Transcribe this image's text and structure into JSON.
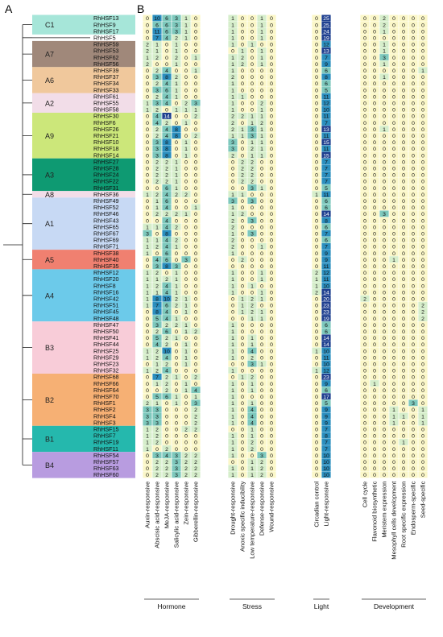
{
  "panels": {
    "a": "A",
    "b": "B"
  },
  "genes": [
    "RhHSF13",
    "RhHSF9",
    "RhHSF17",
    "RhHSF5",
    "RhHSF59",
    "RhHSF53",
    "RhHSF62",
    "RhHSF56",
    "RhHSF39",
    "RhHSF37",
    "RhHSF34",
    "RhHSF33",
    "RhHSF61",
    "RhHSF55",
    "RhHSF58",
    "RhHSF30",
    "RhHSF6",
    "RhHSF26",
    "RhHSF21",
    "RhHSF10",
    "RhHSF18",
    "RhHSF14",
    "RhHSF27",
    "RhHSF28",
    "RhHSF24",
    "RhHSF22",
    "RhHSF31",
    "RhHSF36",
    "RhHSF49",
    "RhHSF52",
    "RhHSF46",
    "RhHSF43",
    "RhHSF65",
    "RhHSF67",
    "RhHSF69",
    "RhHSF71",
    "RhHSF38",
    "RhHSF40",
    "RhHSF35",
    "RhHSF12",
    "RhHSF20",
    "RhHSF8",
    "RhHSF16",
    "RhHSF42",
    "RhHSF51",
    "RhHSF45",
    "RhHSF48",
    "RhHSF47",
    "RhHSF50",
    "RhHSF41",
    "RhHSF44",
    "RhHSF25",
    "RhHSF29",
    "RhHSF23",
    "RhHSF32",
    "RhHSF68",
    "RhHSF66",
    "RhHSF64",
    "RhHSF70",
    "RhHSF1",
    "RhHSF2",
    "RhHSF4",
    "RhHSF3",
    "RhHSF15",
    "RhHSF7",
    "RhHSF19",
    "RhHSF11",
    "RhHSF54",
    "RhHSF57",
    "RhHSF63",
    "RhHSF60"
  ],
  "clades": [
    {
      "name": "C1",
      "start": 0,
      "end": 2,
      "color": "#a6e6d9"
    },
    {
      "name": "A7",
      "start": 4,
      "end": 7,
      "color": "#a0887a"
    },
    {
      "name": "A6",
      "start": 8,
      "end": 11,
      "color": "#f0c89c"
    },
    {
      "name": "A2",
      "start": 12,
      "end": 14,
      "color": "#f2dde8"
    },
    {
      "name": "A9",
      "start": 15,
      "end": 21,
      "color": "#cce77a"
    },
    {
      "name": "A3",
      "start": 22,
      "end": 26,
      "color": "#0e9a72"
    },
    {
      "name": "A8",
      "start": 27,
      "end": 27,
      "color": "#f2dde8"
    },
    {
      "name": "A1",
      "start": 28,
      "end": 35,
      "color": "#c7d9f4"
    },
    {
      "name": "A5",
      "start": 36,
      "end": 38,
      "color": "#f08070"
    },
    {
      "name": "A4",
      "start": 39,
      "end": 46,
      "color": "#6ccaea"
    },
    {
      "name": "B3",
      "start": 47,
      "end": 54,
      "color": "#f8ccd8"
    },
    {
      "name": "B2",
      "start": 55,
      "end": 62,
      "color": "#f6b074"
    },
    {
      "name": "B1",
      "start": 63,
      "end": 66,
      "color": "#25b8ad"
    },
    {
      "name": "B4",
      "start": 67,
      "end": 70,
      "color": "#b89ce0"
    }
  ],
  "columns": [
    "Auxin-responsive",
    "Abscisic acid-responsive",
    "MeJA-responsive",
    "Salicylic acid-responsive",
    "Zein-responsive",
    "Gibberellin-responsive",
    "Drought-responsive",
    "Anoxic specific inducibility",
    "Low temperature-responsive",
    "Defense-responsive",
    "Wound-responsive",
    "Circadian control",
    "Light-responsive",
    "Cell cycle",
    "Flavonoid biosynthetic",
    "Meristem expression",
    "Mesophyll cells development",
    "Root specific expression",
    "Endosperm-specific",
    "Seed-specific"
  ],
  "groups": [
    {
      "name": "Hormone",
      "cols": [
        0,
        5
      ]
    },
    {
      "name": "Stress",
      "cols": [
        6,
        10
      ]
    },
    {
      "name": "Light",
      "cols": [
        11,
        12
      ]
    },
    {
      "name": "Development",
      "cols": [
        13,
        19
      ]
    }
  ],
  "colors": {
    "zero": "#fbf7c8",
    "low": "#d6eecb",
    "mid": "#7ec9bd",
    "high": "#2b8fbf",
    "max": "#1e3f8f"
  },
  "matrix": [
    [
      0,
      10,
      6,
      3,
      1,
      0,
      1,
      0,
      0,
      1,
      0,
      0,
      25,
      0,
      0,
      2,
      0,
      0,
      0,
      0
    ],
    [
      0,
      6,
      6,
      3,
      1,
      0,
      1,
      0,
      0,
      1,
      0,
      0,
      25,
      0,
      0,
      2,
      0,
      0,
      0,
      0
    ],
    [
      0,
      11,
      6,
      3,
      1,
      0,
      1,
      0,
      0,
      1,
      0,
      0,
      24,
      0,
      0,
      1,
      0,
      0,
      0,
      0
    ],
    [
      0,
      7,
      4,
      2,
      1,
      0,
      1,
      0,
      0,
      1,
      0,
      0,
      19,
      0,
      0,
      0,
      0,
      0,
      0,
      0
    ],
    [
      2,
      1,
      0,
      1,
      0,
      0,
      1,
      0,
      1,
      0,
      0,
      0,
      12,
      0,
      0,
      1,
      0,
      0,
      0,
      0
    ],
    [
      2,
      1,
      0,
      1,
      0,
      0,
      0,
      1,
      0,
      1,
      0,
      0,
      13,
      0,
      0,
      1,
      0,
      0,
      0,
      0
    ],
    [
      1,
      2,
      0,
      2,
      0,
      1,
      1,
      2,
      0,
      1,
      0,
      0,
      7,
      0,
      0,
      3,
      0,
      0,
      0,
      0
    ],
    [
      2,
      0,
      0,
      1,
      0,
      0,
      1,
      2,
      0,
      1,
      0,
      0,
      9,
      0,
      0,
      1,
      0,
      0,
      0,
      0
    ],
    [
      0,
      2,
      4,
      0,
      0,
      1,
      1,
      0,
      0,
      0,
      0,
      0,
      6,
      0,
      0,
      0,
      0,
      0,
      0,
      1
    ],
    [
      0,
      3,
      8,
      2,
      0,
      0,
      2,
      0,
      0,
      0,
      0,
      0,
      8,
      0,
      0,
      1,
      0,
      0,
      0,
      0
    ],
    [
      0,
      2,
      4,
      1,
      0,
      0,
      1,
      0,
      0,
      0,
      0,
      0,
      6,
      0,
      0,
      0,
      0,
      0,
      0,
      0
    ],
    [
      0,
      3,
      6,
      1,
      0,
      0,
      1,
      0,
      0,
      0,
      0,
      0,
      5,
      0,
      0,
      0,
      0,
      0,
      0,
      0
    ],
    [
      0,
      2,
      4,
      1,
      0,
      0,
      1,
      1,
      0,
      0,
      0,
      0,
      11,
      0,
      0,
      0,
      0,
      0,
      0,
      0
    ],
    [
      1,
      3,
      4,
      0,
      2,
      3,
      1,
      0,
      0,
      2,
      0,
      0,
      12,
      0,
      0,
      0,
      0,
      0,
      0,
      0
    ],
    [
      1,
      2,
      0,
      1,
      1,
      1,
      1,
      0,
      0,
      1,
      0,
      0,
      10,
      0,
      0,
      0,
      0,
      0,
      0,
      0
    ],
    [
      0,
      4,
      14,
      0,
      0,
      2,
      2,
      2,
      1,
      1,
      0,
      0,
      11,
      0,
      0,
      0,
      0,
      0,
      0,
      0
    ],
    [
      0,
      4,
      2,
      0,
      1,
      0,
      2,
      0,
      1,
      2,
      0,
      0,
      7,
      0,
      0,
      0,
      0,
      0,
      0,
      0
    ],
    [
      0,
      2,
      4,
      8,
      0,
      0,
      2,
      1,
      3,
      1,
      0,
      0,
      13,
      0,
      0,
      1,
      0,
      0,
      0,
      0
    ],
    [
      0,
      2,
      4,
      8,
      0,
      2,
      1,
      1,
      3,
      1,
      0,
      0,
      11,
      0,
      0,
      0,
      0,
      0,
      0,
      0
    ],
    [
      0,
      3,
      8,
      0,
      1,
      0,
      3,
      0,
      1,
      1,
      0,
      0,
      15,
      0,
      0,
      0,
      0,
      0,
      0,
      0
    ],
    [
      0,
      3,
      8,
      0,
      1,
      0,
      3,
      0,
      2,
      1,
      0,
      0,
      11,
      0,
      0,
      0,
      0,
      0,
      0,
      0
    ],
    [
      0,
      3,
      8,
      0,
      1,
      0,
      2,
      0,
      1,
      1,
      0,
      0,
      15,
      0,
      0,
      0,
      0,
      0,
      0,
      0
    ],
    [
      0,
      2,
      2,
      1,
      0,
      0,
      0,
      2,
      2,
      0,
      0,
      0,
      7,
      0,
      0,
      0,
      0,
      0,
      0,
      0
    ],
    [
      0,
      2,
      2,
      1,
      0,
      0,
      0,
      2,
      2,
      0,
      0,
      0,
      7,
      0,
      0,
      0,
      0,
      0,
      0,
      0
    ],
    [
      0,
      2,
      2,
      1,
      0,
      0,
      0,
      2,
      2,
      0,
      0,
      0,
      7,
      0,
      0,
      0,
      0,
      0,
      0,
      0
    ],
    [
      0,
      2,
      2,
      1,
      0,
      0,
      0,
      2,
      2,
      0,
      0,
      0,
      7,
      0,
      0,
      0,
      0,
      0,
      0,
      0
    ],
    [
      0,
      0,
      6,
      1,
      0,
      0,
      0,
      0,
      3,
      1,
      0,
      0,
      5,
      0,
      0,
      0,
      0,
      0,
      0,
      0
    ],
    [
      1,
      2,
      4,
      2,
      2,
      0,
      1,
      1,
      0,
      0,
      0,
      1,
      11,
      0,
      0,
      0,
      0,
      0,
      0,
      0
    ],
    [
      0,
      1,
      6,
      0,
      0,
      0,
      3,
      0,
      3,
      0,
      0,
      0,
      6,
      0,
      0,
      0,
      0,
      0,
      0,
      0
    ],
    [
      0,
      1,
      4,
      0,
      0,
      1,
      1,
      0,
      0,
      0,
      0,
      0,
      6,
      0,
      0,
      0,
      0,
      0,
      0,
      0
    ],
    [
      0,
      2,
      2,
      2,
      1,
      0,
      1,
      2,
      0,
      0,
      0,
      0,
      14,
      0,
      0,
      3,
      0,
      0,
      0,
      0
    ],
    [
      0,
      0,
      4,
      0,
      0,
      0,
      2,
      0,
      3,
      0,
      0,
      0,
      8,
      0,
      0,
      0,
      0,
      0,
      0,
      0
    ],
    [
      1,
      1,
      4,
      2,
      0,
      0,
      2,
      0,
      0,
      0,
      0,
      0,
      6,
      0,
      0,
      0,
      0,
      0,
      0,
      0
    ],
    [
      3,
      0,
      8,
      0,
      0,
      0,
      1,
      0,
      3,
      0,
      0,
      0,
      7,
      0,
      0,
      0,
      0,
      0,
      0,
      0
    ],
    [
      1,
      1,
      4,
      2,
      0,
      0,
      2,
      0,
      0,
      0,
      0,
      0,
      6,
      0,
      0,
      0,
      0,
      0,
      0,
      0
    ],
    [
      1,
      2,
      4,
      1,
      0,
      0,
      2,
      0,
      0,
      1,
      0,
      0,
      7,
      0,
      0,
      0,
      0,
      0,
      0,
      0
    ],
    [
      1,
      0,
      6,
      0,
      0,
      0,
      1,
      0,
      0,
      0,
      0,
      0,
      9,
      0,
      0,
      0,
      0,
      0,
      0,
      0
    ],
    [
      0,
      4,
      6,
      0,
      3,
      0,
      0,
      2,
      0,
      0,
      0,
      0,
      9,
      0,
      0,
      0,
      1,
      0,
      0,
      0
    ],
    [
      0,
      3,
      8,
      3,
      0,
      0,
      0,
      0,
      0,
      0,
      0,
      0,
      11,
      0,
      0,
      0,
      0,
      0,
      0,
      0
    ],
    [
      1,
      2,
      0,
      1,
      0,
      0,
      1,
      0,
      0,
      1,
      0,
      2,
      12,
      0,
      0,
      0,
      0,
      0,
      0,
      0
    ],
    [
      1,
      1,
      2,
      1,
      0,
      0,
      1,
      0,
      0,
      1,
      0,
      1,
      11,
      0,
      0,
      0,
      0,
      0,
      0,
      0
    ],
    [
      1,
      2,
      4,
      1,
      0,
      0,
      1,
      0,
      1,
      0,
      0,
      1,
      10,
      0,
      0,
      0,
      0,
      0,
      0,
      0
    ],
    [
      1,
      1,
      4,
      1,
      0,
      0,
      1,
      0,
      0,
      1,
      0,
      2,
      14,
      0,
      0,
      0,
      0,
      0,
      0,
      0
    ],
    [
      1,
      8,
      10,
      2,
      1,
      0,
      0,
      1,
      2,
      1,
      0,
      0,
      20,
      2,
      0,
      0,
      0,
      0,
      0,
      0
    ],
    [
      1,
      7,
      6,
      2,
      1,
      0,
      0,
      1,
      2,
      0,
      0,
      0,
      23,
      0,
      0,
      0,
      0,
      0,
      0,
      2
    ],
    [
      0,
      8,
      4,
      0,
      1,
      0,
      0,
      1,
      2,
      1,
      0,
      0,
      23,
      0,
      0,
      0,
      0,
      0,
      0,
      2
    ],
    [
      0,
      5,
      4,
      1,
      0,
      0,
      0,
      0,
      1,
      1,
      0,
      0,
      19,
      0,
      0,
      0,
      0,
      0,
      0,
      2
    ],
    [
      0,
      3,
      2,
      2,
      1,
      0,
      1,
      0,
      0,
      0,
      0,
      0,
      6,
      0,
      0,
      0,
      0,
      0,
      0,
      0
    ],
    [
      0,
      2,
      6,
      0,
      1,
      2,
      1,
      0,
      0,
      0,
      0,
      0,
      6,
      0,
      0,
      0,
      0,
      0,
      0,
      0
    ],
    [
      0,
      5,
      2,
      1,
      0,
      0,
      1,
      0,
      1,
      0,
      0,
      0,
      14,
      0,
      0,
      0,
      0,
      0,
      0,
      0
    ],
    [
      0,
      4,
      2,
      0,
      1,
      0,
      1,
      0,
      1,
      0,
      0,
      0,
      14,
      0,
      0,
      0,
      0,
      0,
      0,
      0
    ],
    [
      1,
      2,
      10,
      0,
      1,
      0,
      1,
      0,
      4,
      0,
      0,
      1,
      10,
      0,
      0,
      0,
      0,
      0,
      0,
      0
    ],
    [
      1,
      2,
      4,
      0,
      1,
      0,
      1,
      0,
      2,
      0,
      0,
      0,
      11,
      0,
      0,
      0,
      0,
      0,
      0,
      0
    ],
    [
      0,
      1,
      2,
      0,
      1,
      0,
      0,
      0,
      3,
      1,
      0,
      0,
      10,
      0,
      0,
      0,
      0,
      0,
      0,
      0
    ],
    [
      1,
      2,
      4,
      0,
      0,
      0,
      1,
      0,
      0,
      0,
      0,
      1,
      12,
      0,
      0,
      0,
      0,
      0,
      0,
      0
    ],
    [
      0,
      7,
      2,
      1,
      0,
      2,
      0,
      1,
      2,
      0,
      0,
      0,
      23,
      0,
      0,
      0,
      0,
      0,
      0,
      0
    ],
    [
      0,
      1,
      2,
      0,
      1,
      0,
      1,
      0,
      1,
      0,
      0,
      0,
      9,
      0,
      1,
      0,
      0,
      0,
      0,
      0
    ],
    [
      0,
      0,
      2,
      0,
      1,
      4,
      1,
      0,
      1,
      0,
      0,
      0,
      6,
      0,
      0,
      0,
      0,
      0,
      0,
      0
    ],
    [
      0,
      5,
      6,
      1,
      0,
      1,
      1,
      0,
      0,
      0,
      0,
      0,
      17,
      0,
      0,
      0,
      0,
      0,
      0,
      0
    ],
    [
      2,
      1,
      0,
      1,
      0,
      3,
      1,
      0,
      1,
      0,
      0,
      0,
      5,
      0,
      0,
      0,
      0,
      0,
      3,
      0
    ],
    [
      3,
      3,
      0,
      0,
      0,
      2,
      1,
      0,
      4,
      0,
      0,
      0,
      9,
      0,
      0,
      0,
      1,
      0,
      0,
      1
    ],
    [
      3,
      3,
      0,
      0,
      0,
      2,
      1,
      0,
      4,
      0,
      0,
      0,
      9,
      0,
      0,
      0,
      1,
      1,
      0,
      1
    ],
    [
      3,
      3,
      0,
      0,
      0,
      2,
      1,
      0,
      4,
      0,
      0,
      0,
      9,
      0,
      0,
      0,
      1,
      0,
      0,
      1
    ],
    [
      1,
      2,
      0,
      0,
      2,
      2,
      0,
      0,
      1,
      0,
      0,
      0,
      7,
      0,
      0,
      0,
      0,
      0,
      0,
      0
    ],
    [
      1,
      2,
      0,
      0,
      0,
      0,
      1,
      0,
      1,
      0,
      0,
      0,
      8,
      0,
      0,
      0,
      0,
      0,
      0,
      0
    ],
    [
      1,
      2,
      0,
      0,
      0,
      0,
      1,
      0,
      2,
      0,
      0,
      0,
      7,
      0,
      0,
      0,
      0,
      1,
      0,
      0
    ],
    [
      1,
      0,
      2,
      0,
      0,
      0,
      1,
      0,
      2,
      0,
      0,
      0,
      7,
      0,
      0,
      0,
      0,
      0,
      0,
      0
    ],
    [
      0,
      3,
      4,
      3,
      2,
      2,
      1,
      0,
      0,
      3,
      0,
      0,
      10,
      0,
      0,
      0,
      0,
      0,
      0,
      0
    ],
    [
      0,
      2,
      2,
      3,
      2,
      2,
      0,
      0,
      1,
      2,
      0,
      0,
      10,
      0,
      0,
      0,
      0,
      0,
      0,
      0
    ],
    [
      0,
      2,
      2,
      3,
      2,
      2,
      1,
      0,
      1,
      2,
      0,
      0,
      10,
      0,
      0,
      0,
      0,
      0,
      0,
      0
    ],
    [
      0,
      2,
      2,
      3,
      2,
      2,
      1,
      0,
      1,
      2,
      0,
      0,
      10,
      0,
      0,
      0,
      0,
      0,
      0,
      0
    ]
  ]
}
